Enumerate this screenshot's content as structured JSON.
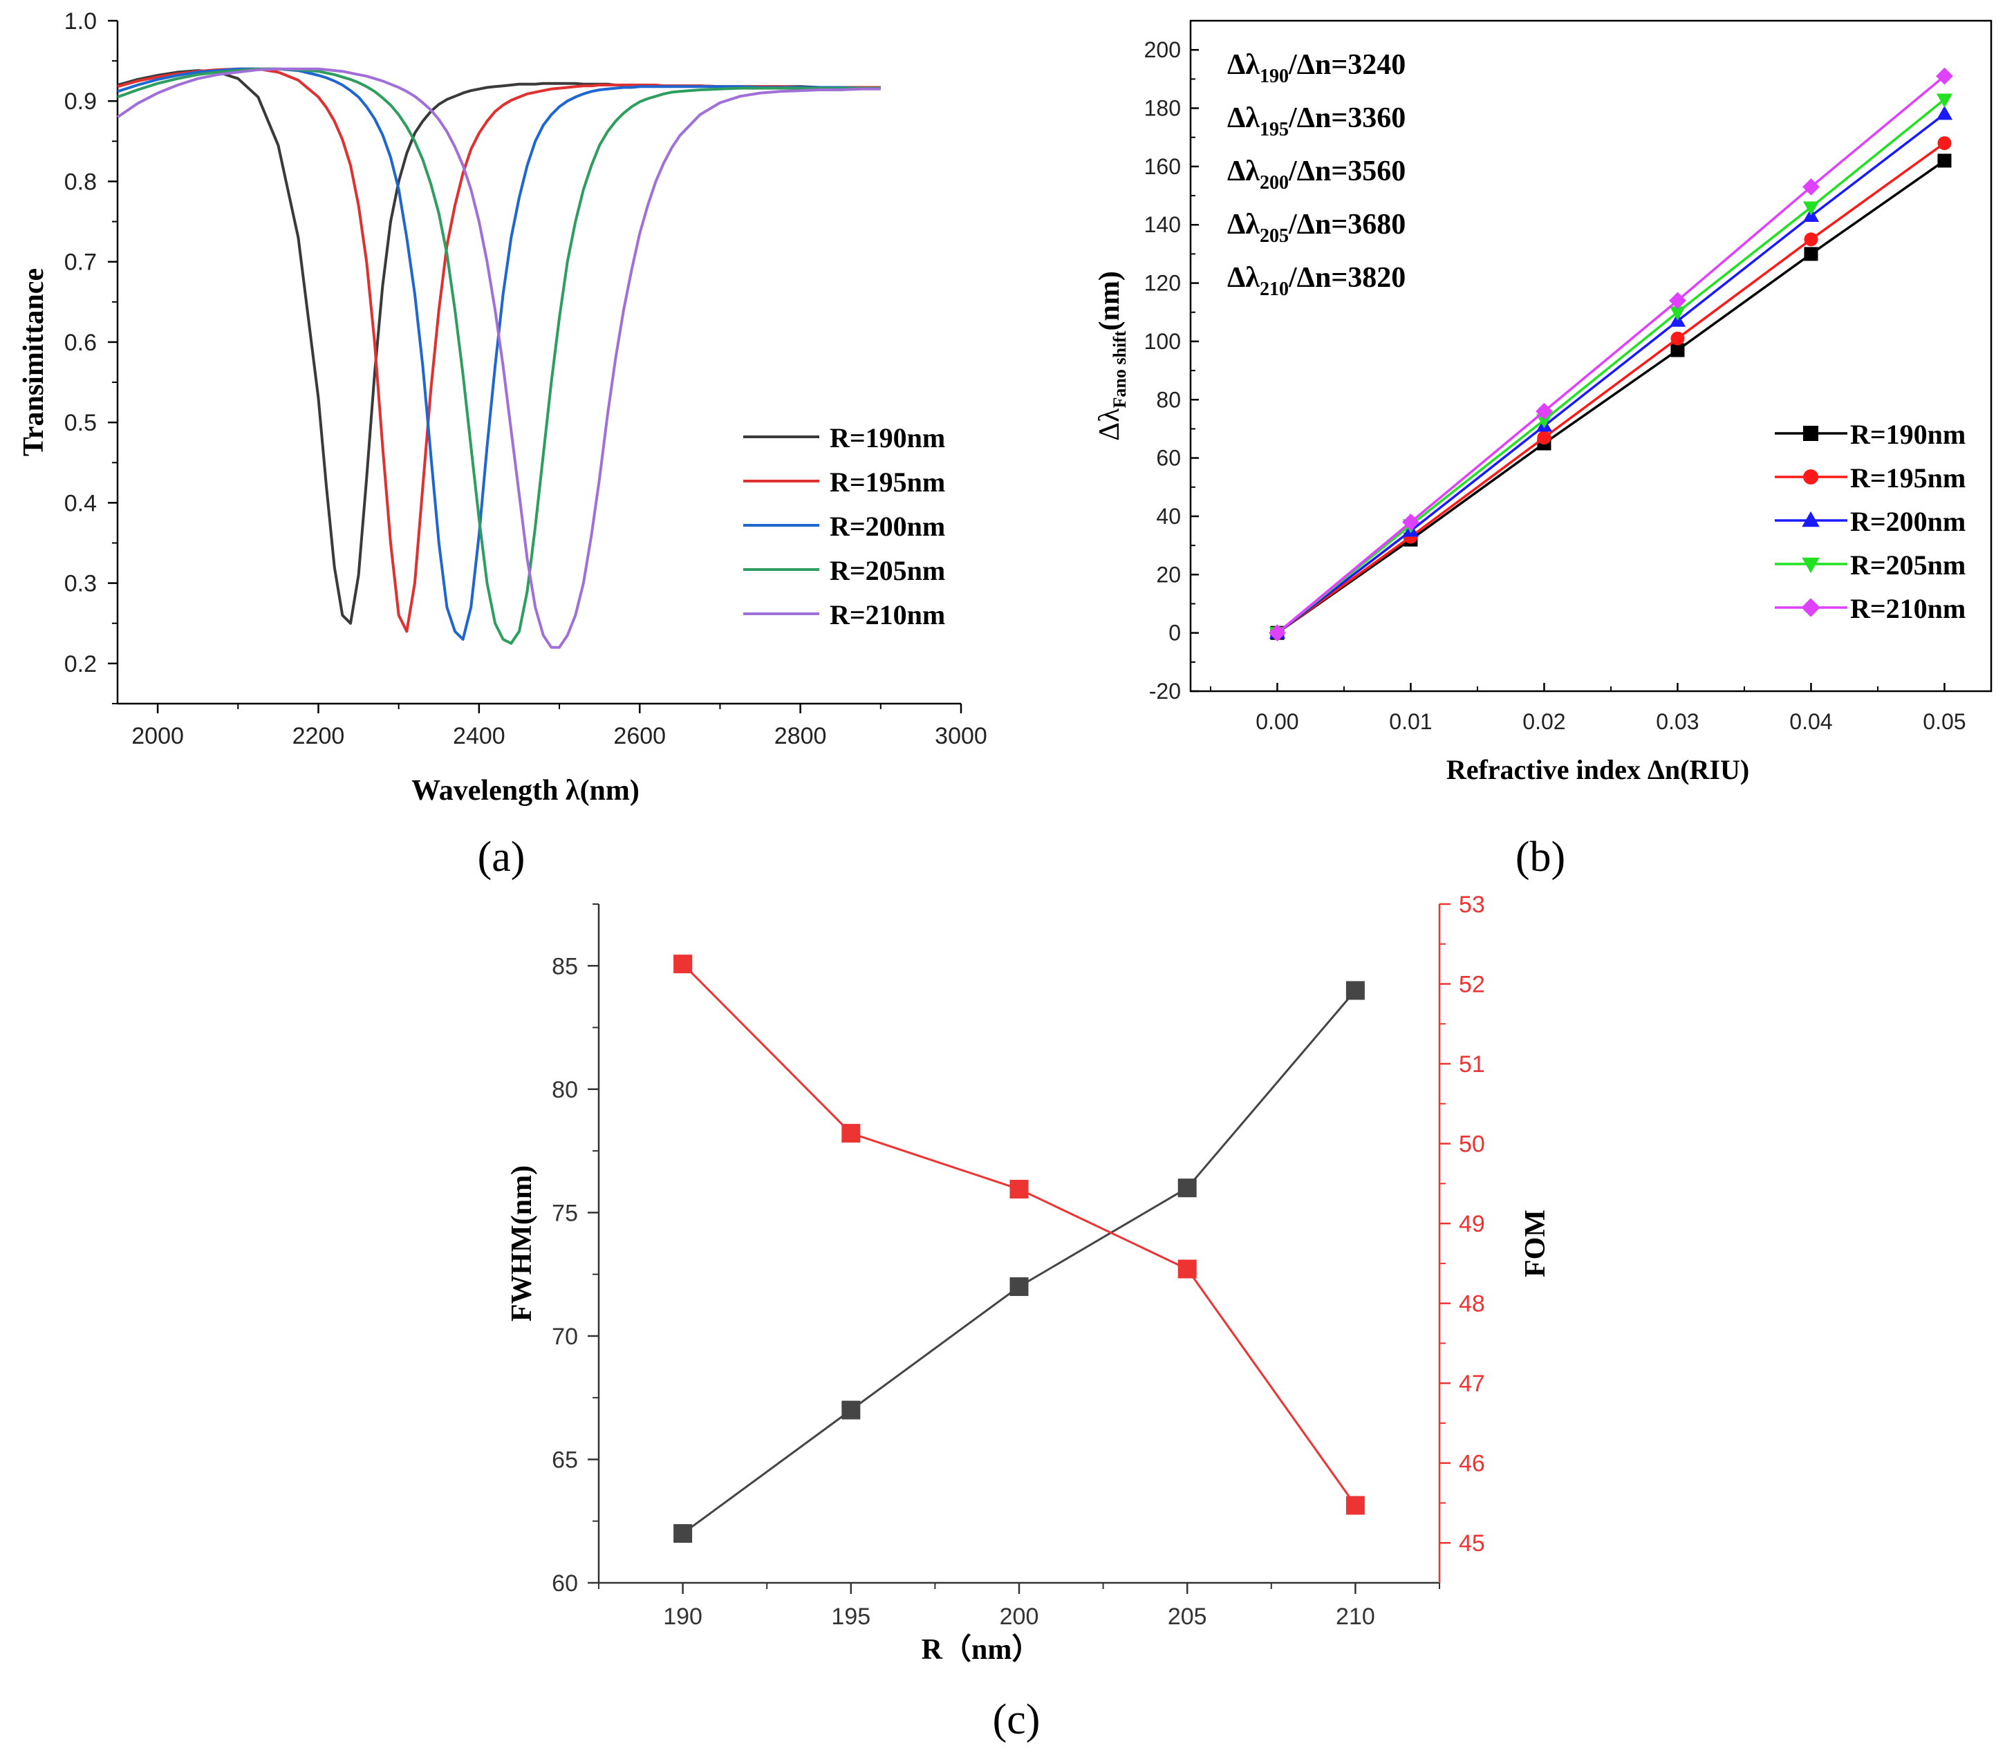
{
  "chart_data": [
    {
      "id": "a",
      "type": "line",
      "panel_label": "(a)",
      "title": "",
      "xlabel": "Wavelength λ(nm)",
      "ylabel": "Transimittance",
      "xlim": [
        1950,
        3000
      ],
      "ylim": [
        0.15,
        1.0
      ],
      "xticks": [
        2000,
        2200,
        2400,
        2600,
        2800,
        3000
      ],
      "xtick_labels": [
        "2000",
        "2200",
        "2400",
        "2600",
        "2800",
        "3000"
      ],
      "yticks": [
        0.2,
        0.3,
        0.4,
        0.5,
        0.6,
        0.7,
        0.8,
        0.9,
        1.0
      ],
      "ytick_labels": [
        "0.2",
        "0.3",
        "0.4",
        "0.5",
        "0.6",
        "0.7",
        "0.8",
        "0.9",
        "1.0"
      ],
      "legend_position": "lower-right",
      "x": [
        1950,
        1975,
        2000,
        2025,
        2050,
        2075,
        2100,
        2125,
        2150,
        2175,
        2200,
        2210,
        2220,
        2230,
        2240,
        2250,
        2260,
        2270,
        2280,
        2290,
        2300,
        2310,
        2320,
        2330,
        2340,
        2350,
        2360,
        2370,
        2380,
        2390,
        2400,
        2410,
        2420,
        2430,
        2440,
        2450,
        2460,
        2470,
        2480,
        2490,
        2500,
        2510,
        2520,
        2530,
        2540,
        2550,
        2560,
        2570,
        2580,
        2590,
        2600,
        2610,
        2620,
        2630,
        2640,
        2650,
        2675,
        2700,
        2725,
        2750,
        2775,
        2800,
        2825,
        2850,
        2875,
        2900
      ],
      "series": [
        {
          "name": "R=190nm",
          "color": "#3a3a3a",
          "values": [
            0.92,
            0.927,
            0.932,
            0.936,
            0.938,
            0.936,
            0.928,
            0.905,
            0.845,
            0.73,
            0.53,
            0.42,
            0.32,
            0.26,
            0.25,
            0.31,
            0.43,
            0.56,
            0.67,
            0.75,
            0.8,
            0.835,
            0.86,
            0.875,
            0.887,
            0.896,
            0.902,
            0.906,
            0.91,
            0.913,
            0.915,
            0.917,
            0.918,
            0.919,
            0.92,
            0.921,
            0.921,
            0.921,
            0.922,
            0.922,
            0.922,
            0.922,
            0.922,
            0.921,
            0.921,
            0.921,
            0.921,
            0.92,
            0.92,
            0.92,
            0.92,
            0.92,
            0.919,
            0.919,
            0.919,
            0.919,
            0.919,
            0.918,
            0.918,
            0.918,
            0.918,
            0.918,
            0.917,
            0.917,
            0.917,
            0.917
          ]
        },
        {
          "name": "R=195nm",
          "color": "#e03030",
          "values": [
            0.918,
            0.925,
            0.93,
            0.934,
            0.937,
            0.939,
            0.94,
            0.94,
            0.936,
            0.926,
            0.905,
            0.892,
            0.875,
            0.852,
            0.82,
            0.77,
            0.7,
            0.6,
            0.47,
            0.35,
            0.26,
            0.24,
            0.3,
            0.42,
            0.54,
            0.64,
            0.72,
            0.77,
            0.81,
            0.84,
            0.86,
            0.875,
            0.887,
            0.895,
            0.901,
            0.905,
            0.909,
            0.911,
            0.913,
            0.915,
            0.916,
            0.917,
            0.918,
            0.919,
            0.919,
            0.92,
            0.92,
            0.92,
            0.92,
            0.92,
            0.92,
            0.92,
            0.92,
            0.919,
            0.919,
            0.919,
            0.919,
            0.918,
            0.918,
            0.918,
            0.918,
            0.917,
            0.917,
            0.917,
            0.917,
            0.917
          ]
        },
        {
          "name": "R=200nm",
          "color": "#1e66d0",
          "values": [
            0.912,
            0.92,
            0.927,
            0.932,
            0.936,
            0.938,
            0.94,
            0.94,
            0.94,
            0.938,
            0.932,
            0.929,
            0.925,
            0.92,
            0.913,
            0.905,
            0.893,
            0.878,
            0.858,
            0.83,
            0.79,
            0.73,
            0.66,
            0.57,
            0.46,
            0.35,
            0.27,
            0.24,
            0.23,
            0.27,
            0.36,
            0.47,
            0.57,
            0.66,
            0.73,
            0.78,
            0.82,
            0.85,
            0.87,
            0.883,
            0.893,
            0.9,
            0.905,
            0.909,
            0.912,
            0.914,
            0.915,
            0.916,
            0.917,
            0.917,
            0.918,
            0.918,
            0.918,
            0.918,
            0.918,
            0.918,
            0.918,
            0.918,
            0.918,
            0.917,
            0.917,
            0.917,
            0.917,
            0.917,
            0.916,
            0.916
          ]
        },
        {
          "name": "R=205nm",
          "color": "#2e9e5e",
          "values": [
            0.905,
            0.914,
            0.922,
            0.928,
            0.933,
            0.936,
            0.938,
            0.94,
            0.94,
            0.939,
            0.937,
            0.935,
            0.933,
            0.93,
            0.927,
            0.923,
            0.918,
            0.912,
            0.904,
            0.895,
            0.883,
            0.868,
            0.85,
            0.827,
            0.797,
            0.76,
            0.71,
            0.64,
            0.56,
            0.47,
            0.38,
            0.3,
            0.25,
            0.23,
            0.225,
            0.24,
            0.29,
            0.37,
            0.46,
            0.55,
            0.63,
            0.7,
            0.75,
            0.79,
            0.82,
            0.845,
            0.862,
            0.875,
            0.885,
            0.893,
            0.899,
            0.903,
            0.906,
            0.909,
            0.911,
            0.912,
            0.914,
            0.915,
            0.916,
            0.916,
            0.916,
            0.916,
            0.916,
            0.916,
            0.916,
            0.916
          ]
        },
        {
          "name": "R=210nm",
          "color": "#a070d8",
          "values": [
            0.88,
            0.897,
            0.91,
            0.92,
            0.928,
            0.933,
            0.936,
            0.939,
            0.94,
            0.94,
            0.94,
            0.939,
            0.938,
            0.937,
            0.935,
            0.933,
            0.931,
            0.928,
            0.925,
            0.921,
            0.917,
            0.912,
            0.906,
            0.898,
            0.889,
            0.877,
            0.862,
            0.843,
            0.82,
            0.79,
            0.75,
            0.7,
            0.64,
            0.57,
            0.49,
            0.41,
            0.33,
            0.27,
            0.235,
            0.22,
            0.22,
            0.235,
            0.26,
            0.3,
            0.36,
            0.43,
            0.51,
            0.58,
            0.64,
            0.69,
            0.735,
            0.77,
            0.8,
            0.823,
            0.842,
            0.857,
            0.883,
            0.898,
            0.906,
            0.91,
            0.912,
            0.913,
            0.914,
            0.914,
            0.915,
            0.915
          ]
        }
      ]
    },
    {
      "id": "b",
      "type": "line",
      "panel_label": "(b)",
      "title": "",
      "xlabel": "Refractive index Δn(RIU)",
      "ylabel_main": "Δλ",
      "ylabel_sub": "Fano shift",
      "ylabel_tail": "(nm)",
      "xlim": [
        -0.0065,
        0.0535
      ],
      "ylim": [
        -20,
        210
      ],
      "xticks": [
        0.0,
        0.01,
        0.02,
        0.03,
        0.04,
        0.05
      ],
      "xtick_labels": [
        "0.00",
        "0.01",
        "0.02",
        "0.03",
        "0.04",
        "0.05"
      ],
      "yticks": [
        -20,
        0,
        20,
        40,
        60,
        80,
        100,
        120,
        140,
        160,
        180,
        200
      ],
      "ytick_labels": [
        "-20",
        "0",
        "20",
        "40",
        "60",
        "80",
        "100",
        "120",
        "140",
        "160",
        "180",
        "200"
      ],
      "legend_position": "right",
      "annotations": [
        {
          "pre": "Δλ",
          "sub": "190",
          "post": "/Δn=3240"
        },
        {
          "pre": "Δλ",
          "sub": "195",
          "post": "/Δn=3360"
        },
        {
          "pre": "Δλ",
          "sub": "200",
          "post": "/Δn=3560"
        },
        {
          "pre": "Δλ",
          "sub": "205",
          "post": "/Δn=3680"
        },
        {
          "pre": "Δλ",
          "sub": "210",
          "post": "/Δn=3820"
        }
      ],
      "x": [
        0.0,
        0.01,
        0.02,
        0.03,
        0.04,
        0.05
      ],
      "series": [
        {
          "name": "R=190nm",
          "color": "#000000",
          "marker": "square",
          "values": [
            0,
            32,
            65,
            97,
            130,
            162
          ]
        },
        {
          "name": "R=195nm",
          "color": "#ff1a1a",
          "marker": "circle",
          "values": [
            0,
            33,
            67,
            101,
            135,
            168
          ]
        },
        {
          "name": "R=200nm",
          "color": "#1a1aff",
          "marker": "triangle-up",
          "values": [
            0,
            35,
            71,
            107,
            143,
            178
          ]
        },
        {
          "name": "R=205nm",
          "color": "#22e022",
          "marker": "triangle-down",
          "values": [
            0,
            37,
            73,
            110,
            146,
            183
          ]
        },
        {
          "name": "R=210nm",
          "color": "#e040ff",
          "marker": "diamond",
          "values": [
            0,
            38,
            76,
            114,
            153,
            191
          ]
        }
      ]
    },
    {
      "id": "c",
      "type": "line",
      "panel_label": "(c)",
      "title": "",
      "xlabel": "R（nm）",
      "ylabel": "FWHM(nm)",
      "ylabel_right": "FOM",
      "xlim": [
        187.5,
        212.5
      ],
      "ylim": [
        60,
        87.5
      ],
      "ylim_right": [
        44.5,
        53
      ],
      "xticks": [
        190,
        195,
        200,
        205,
        210
      ],
      "xtick_labels": [
        "190",
        "195",
        "200",
        "205",
        "210"
      ],
      "yticks": [
        60,
        65,
        70,
        75,
        80,
        85
      ],
      "ytick_labels": [
        "60",
        "65",
        "70",
        "75",
        "80",
        "85"
      ],
      "yticks_right": [
        45,
        46,
        47,
        48,
        49,
        50,
        51,
        52,
        53
      ],
      "ytick_labels_right": [
        "45",
        "46",
        "47",
        "48",
        "49",
        "50",
        "51",
        "52",
        "53"
      ],
      "x": [
        190,
        195,
        200,
        205,
        210
      ],
      "series": [
        {
          "name": "FWHM",
          "axis": "left",
          "color": "#454545",
          "marker": "square",
          "values": [
            62,
            67,
            72,
            76,
            84
          ]
        },
        {
          "name": "FOM",
          "axis": "right",
          "color": "#ee3333",
          "marker": "square",
          "values": [
            52.25,
            50.13,
            49.43,
            48.43,
            45.47
          ]
        }
      ]
    }
  ]
}
